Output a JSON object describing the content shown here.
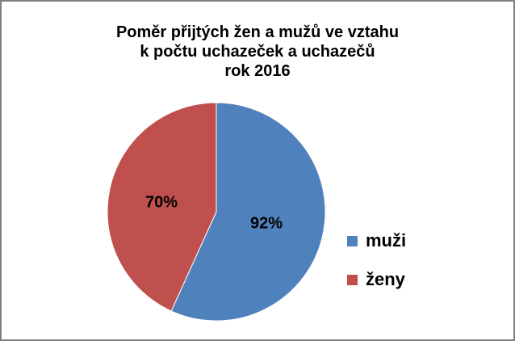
{
  "chart_data": {
    "type": "pie",
    "title_lines": [
      "Poměr přijtých žen a mužů ve vztahu",
      "k počtu uchazeček a uchazečů",
      "rok  2016"
    ],
    "slices": [
      {
        "name": "muži",
        "value": 92,
        "label": "92%",
        "color": "#4f81bd"
      },
      {
        "name": "ženy",
        "value": 70,
        "label": "70%",
        "color": "#c0504d"
      }
    ],
    "legend_position": "right"
  }
}
